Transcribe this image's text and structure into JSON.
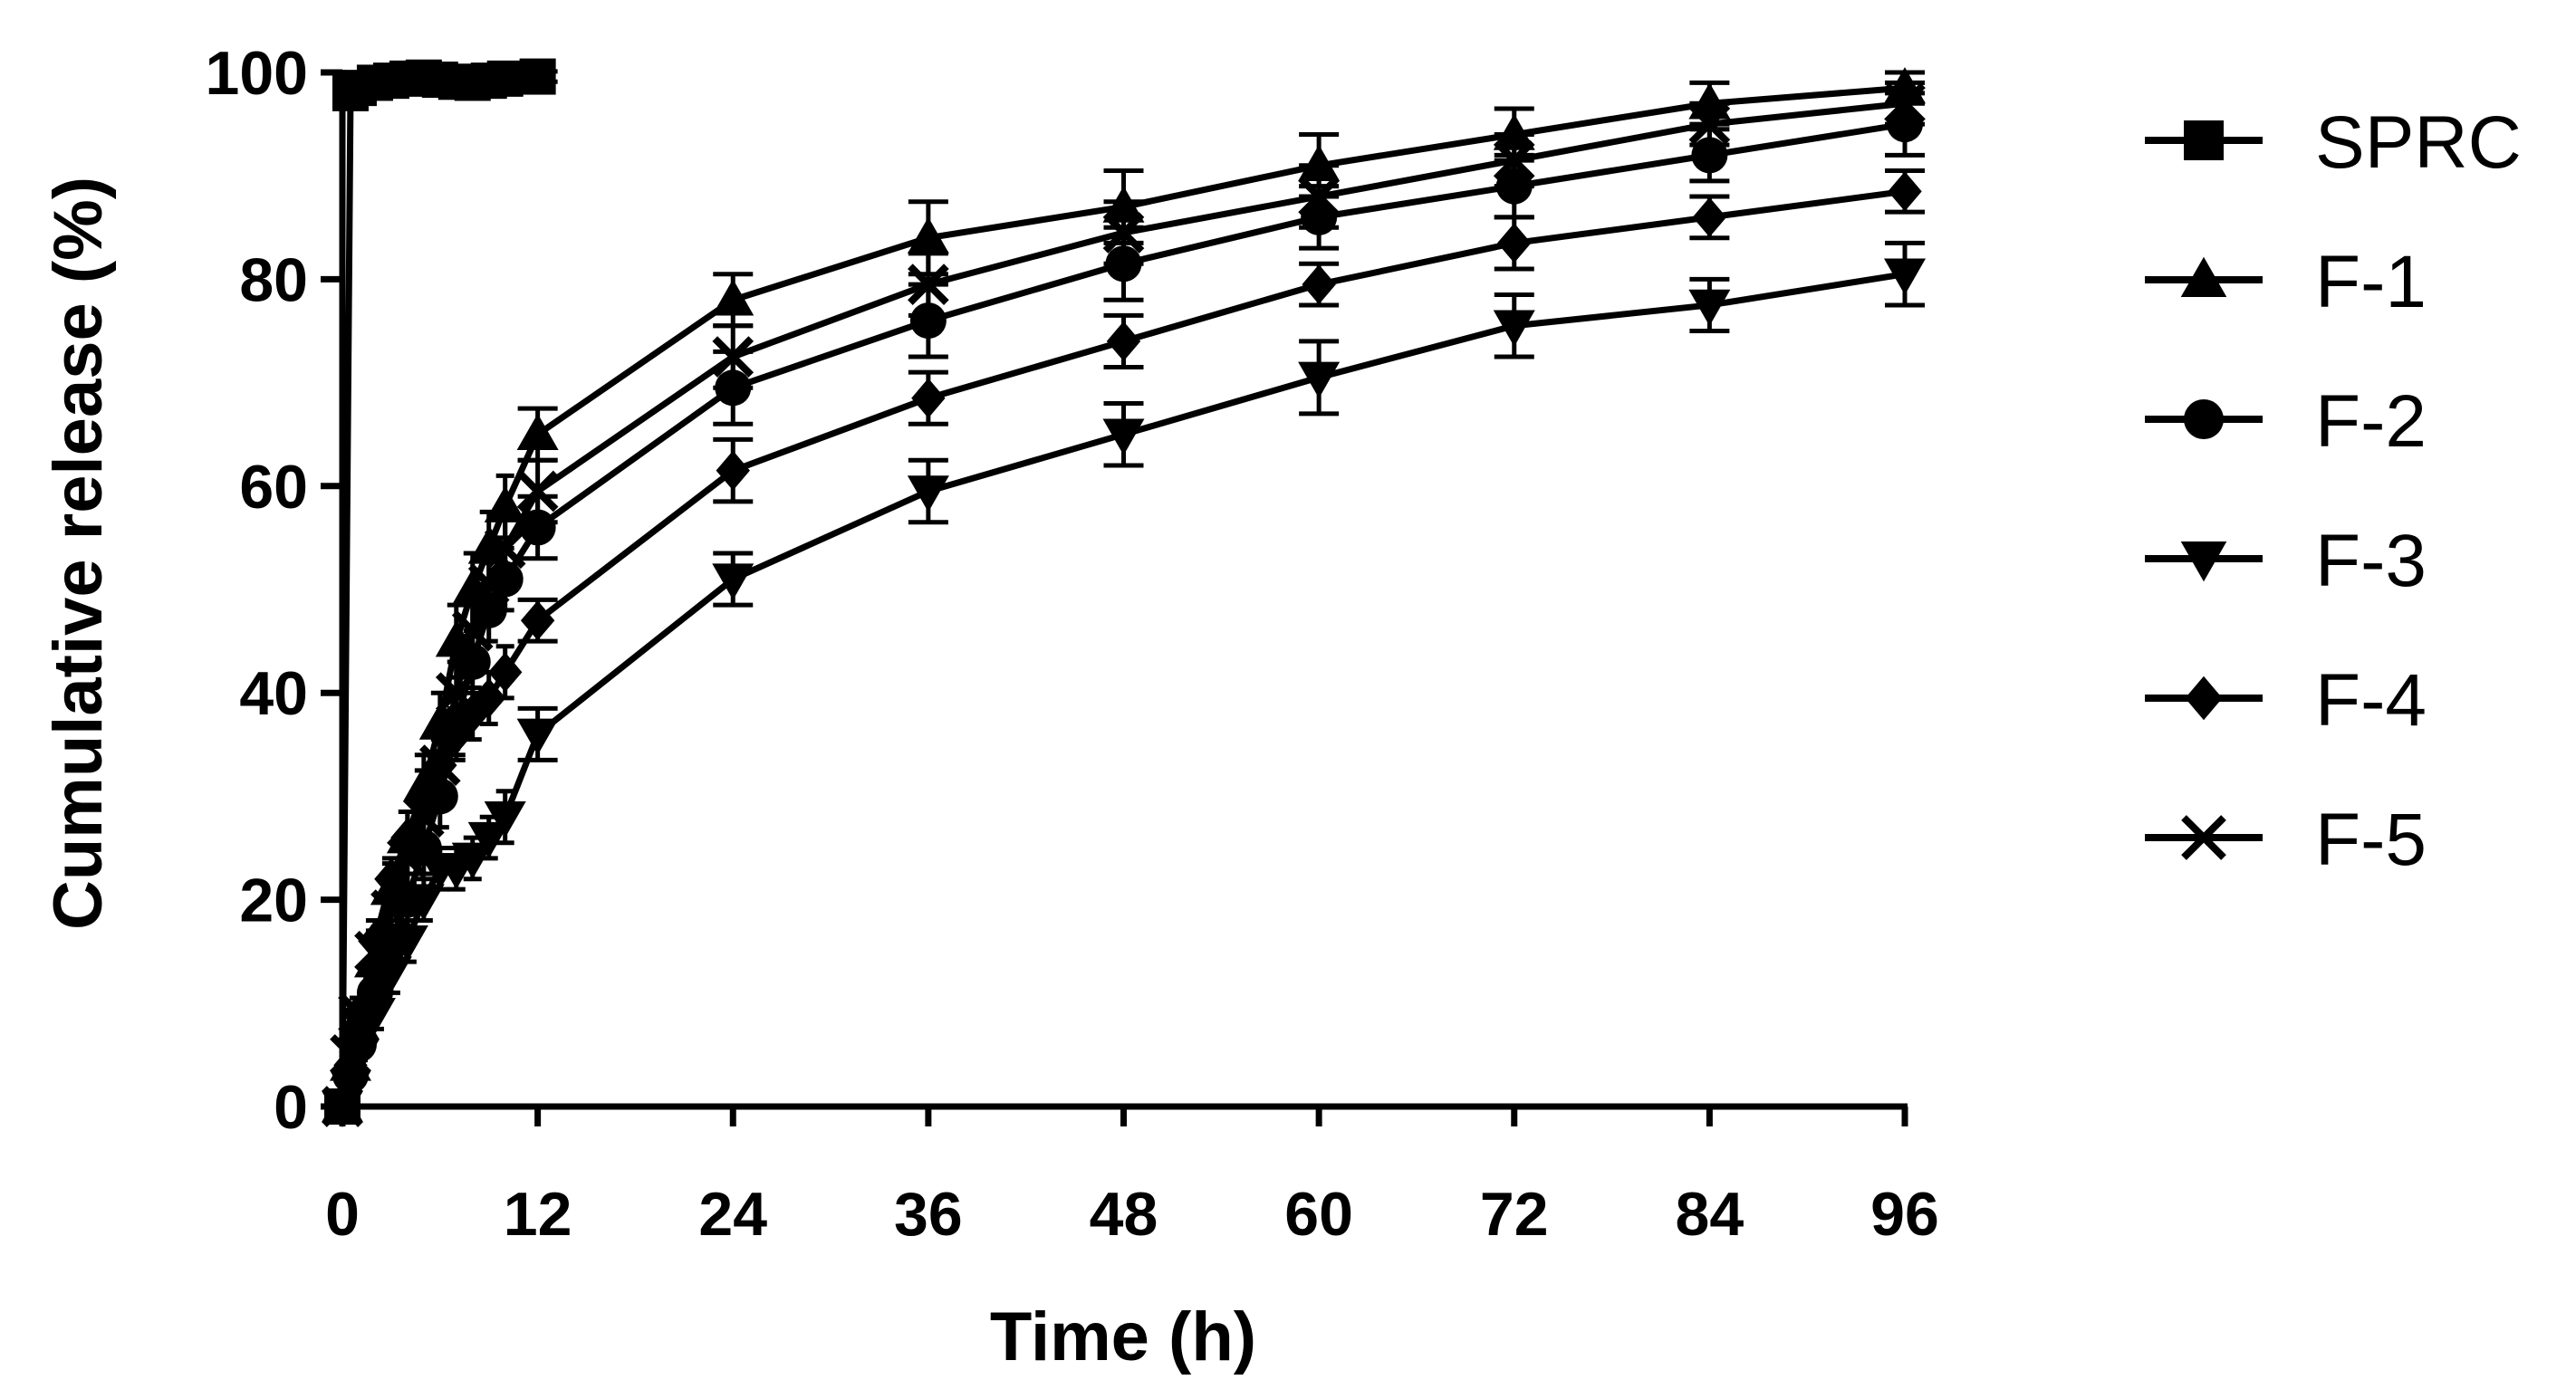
{
  "chart_data": {
    "type": "line",
    "title": "",
    "xlabel": "Time (h)",
    "ylabel": "Cumulative release (%)",
    "xlim": [
      0,
      96
    ],
    "ylim": [
      0,
      100
    ],
    "xticks": [
      0,
      12,
      24,
      36,
      48,
      60,
      72,
      84,
      96
    ],
    "yticks": [
      0,
      20,
      40,
      60,
      80,
      100
    ],
    "grid": false,
    "legend_position": "right",
    "colors": {
      "line": "#000000",
      "background": "#ffffff"
    },
    "series": [
      {
        "name": "SPRC",
        "marker": "square",
        "x": [
          0,
          0.5,
          1,
          2,
          3,
          4,
          5,
          6,
          7,
          8,
          9,
          10,
          12
        ],
        "y": [
          0,
          98,
          98.5,
          99,
          99.2,
          99.4,
          99.5,
          99.3,
          99.1,
          99.0,
          99.2,
          99.4,
          99.6
        ],
        "err": [
          0,
          0.8,
          0.6,
          0.5,
          0.5,
          0.5,
          0.5,
          0.5,
          0.5,
          0.5,
          0.5,
          0.5,
          0.5
        ]
      },
      {
        "name": "F-1",
        "marker": "triangle-up",
        "x": [
          0,
          0.5,
          1,
          2,
          3,
          4,
          5,
          6,
          7,
          8,
          9,
          10,
          12,
          24,
          36,
          48,
          60,
          72,
          84,
          96
        ],
        "y": [
          0,
          4,
          8,
          14,
          21,
          26,
          31,
          37,
          45,
          50,
          54,
          58,
          65,
          78,
          84,
          87,
          91,
          94,
          97,
          98.5
        ],
        "err": [
          0,
          1,
          1.5,
          2,
          2.5,
          2.5,
          3,
          3,
          3.5,
          3.5,
          3.5,
          3,
          2.5,
          2.5,
          3.5,
          3.5,
          3,
          2.5,
          2,
          1.5
        ]
      },
      {
        "name": "F-2",
        "marker": "circle",
        "x": [
          0,
          0.5,
          1,
          2,
          3,
          4,
          5,
          6,
          7,
          8,
          9,
          10,
          12,
          24,
          36,
          48,
          60,
          72,
          84,
          96
        ],
        "y": [
          0,
          3,
          6,
          11,
          16,
          20,
          25,
          30,
          37,
          43,
          48,
          51,
          56,
          69.5,
          76,
          81.5,
          86,
          89,
          92,
          95
        ],
        "err": [
          0,
          1,
          1.5,
          2,
          2,
          2.5,
          2.5,
          3,
          3,
          3,
          3,
          3,
          3,
          3.5,
          3.5,
          3.5,
          3,
          3,
          2.5,
          3
        ]
      },
      {
        "name": "F-3",
        "marker": "triangle-down",
        "x": [
          0,
          0.5,
          1,
          2,
          3,
          4,
          5,
          6,
          7,
          8,
          9,
          10,
          12,
          24,
          36,
          48,
          60,
          72,
          84,
          96
        ],
        "y": [
          0,
          2,
          5,
          9,
          13,
          16,
          20,
          23,
          23,
          24,
          26,
          28,
          36,
          51,
          59.5,
          65,
          70.5,
          75.5,
          77.5,
          80.5
        ],
        "err": [
          0,
          1,
          1.5,
          1.5,
          2,
          2,
          2,
          2,
          2,
          2,
          2,
          2.5,
          2.5,
          2.5,
          3,
          3,
          3.5,
          3,
          2.5,
          3
        ]
      },
      {
        "name": "F-4",
        "marker": "diamond",
        "x": [
          0,
          0.5,
          1,
          2,
          3,
          4,
          5,
          6,
          7,
          8,
          9,
          10,
          12,
          24,
          36,
          48,
          60,
          72,
          84,
          96
        ],
        "y": [
          0,
          4,
          9,
          16,
          22,
          26,
          30,
          33,
          36,
          38,
          39.5,
          42,
          47,
          61.5,
          68.5,
          74,
          79.5,
          83.5,
          86,
          88.5
        ],
        "err": [
          0,
          1,
          1.5,
          2,
          2,
          2.5,
          2.5,
          2.5,
          2.5,
          2.5,
          2.5,
          2.5,
          2,
          3,
          2.5,
          2.5,
          2,
          2.5,
          2,
          2
        ]
      },
      {
        "name": "F-5",
        "marker": "x",
        "x": [
          0,
          0.5,
          1,
          2,
          3,
          4,
          5,
          6,
          7,
          8,
          9,
          10,
          12,
          24,
          36,
          48,
          60,
          72,
          84,
          96
        ],
        "y": [
          0,
          5,
          9,
          15,
          19,
          24,
          28,
          33,
          40,
          46,
          50.5,
          54,
          59.5,
          72.5,
          79.5,
          84.5,
          88,
          91.5,
          95,
          97
        ],
        "err": [
          0,
          1,
          1.5,
          2,
          2.5,
          2.5,
          3,
          3,
          3,
          3,
          3,
          3,
          3,
          3,
          3,
          3,
          3,
          2.5,
          2,
          2
        ]
      }
    ]
  }
}
